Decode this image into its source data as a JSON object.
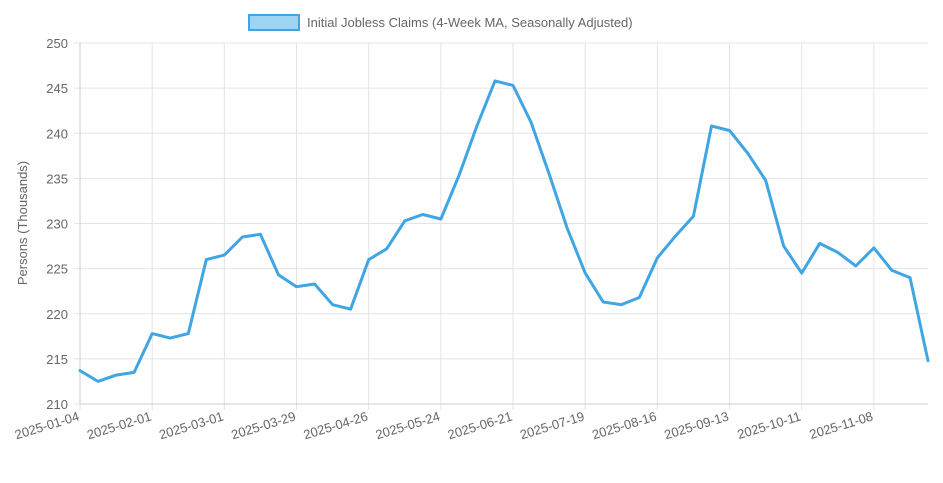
{
  "chart_data": {
    "type": "line",
    "title": "",
    "xlabel": "",
    "ylabel": "Persons (Thousands)",
    "ylim": [
      210,
      250
    ],
    "yticks": [
      210,
      215,
      220,
      225,
      230,
      235,
      240,
      245,
      250
    ],
    "xticks": [
      "2025-01-04",
      "2025-02-01",
      "2025-03-01",
      "2025-03-29",
      "2025-04-26",
      "2025-05-24",
      "2025-06-21",
      "2025-07-19",
      "2025-08-16",
      "2025-09-13",
      "2025-10-11",
      "2025-11-08"
    ],
    "grid": true,
    "legend": "top",
    "colors": {
      "line": "#3fa5e3",
      "legend_fill": "#9fd3f3",
      "grid": "#e4e4e4",
      "axis": "#cccccc",
      "tick_text": "#666666"
    },
    "series": [
      {
        "name": "Initial Jobless Claims (4-Week MA, Seasonally Adjusted)",
        "x": [
          "2025-01-04",
          "2025-01-11",
          "2025-01-18",
          "2025-01-25",
          "2025-02-01",
          "2025-02-08",
          "2025-02-15",
          "2025-02-22",
          "2025-03-01",
          "2025-03-08",
          "2025-03-15",
          "2025-03-22",
          "2025-03-29",
          "2025-04-05",
          "2025-04-12",
          "2025-04-19",
          "2025-04-26",
          "2025-05-03",
          "2025-05-10",
          "2025-05-17",
          "2025-05-24",
          "2025-05-31",
          "2025-06-07",
          "2025-06-14",
          "2025-06-21",
          "2025-06-28",
          "2025-07-05",
          "2025-07-12",
          "2025-07-19",
          "2025-07-26",
          "2025-08-02",
          "2025-08-09",
          "2025-08-16",
          "2025-08-23",
          "2025-08-30",
          "2025-09-06",
          "2025-09-13",
          "2025-09-20",
          "2025-09-27",
          "2025-10-04",
          "2025-10-11",
          "2025-10-18",
          "2025-10-25",
          "2025-11-01",
          "2025-11-08",
          "2025-11-15",
          "2025-11-22",
          "2025-11-29"
        ],
        "values": [
          213.7,
          212.5,
          213.2,
          213.5,
          217.8,
          217.3,
          217.8,
          226.0,
          226.5,
          228.5,
          228.8,
          224.3,
          223.0,
          223.3,
          221.0,
          220.5,
          226.0,
          227.2,
          230.3,
          231.0,
          230.5,
          235.3,
          240.8,
          245.8,
          245.3,
          241.2,
          235.5,
          229.5,
          224.5,
          221.3,
          221.0,
          221.8,
          226.2,
          228.6,
          230.8,
          240.8,
          240.3,
          237.8,
          234.8,
          227.5,
          224.5,
          227.8,
          226.8,
          225.3,
          227.3,
          224.8,
          224.0,
          214.8
        ]
      }
    ]
  }
}
